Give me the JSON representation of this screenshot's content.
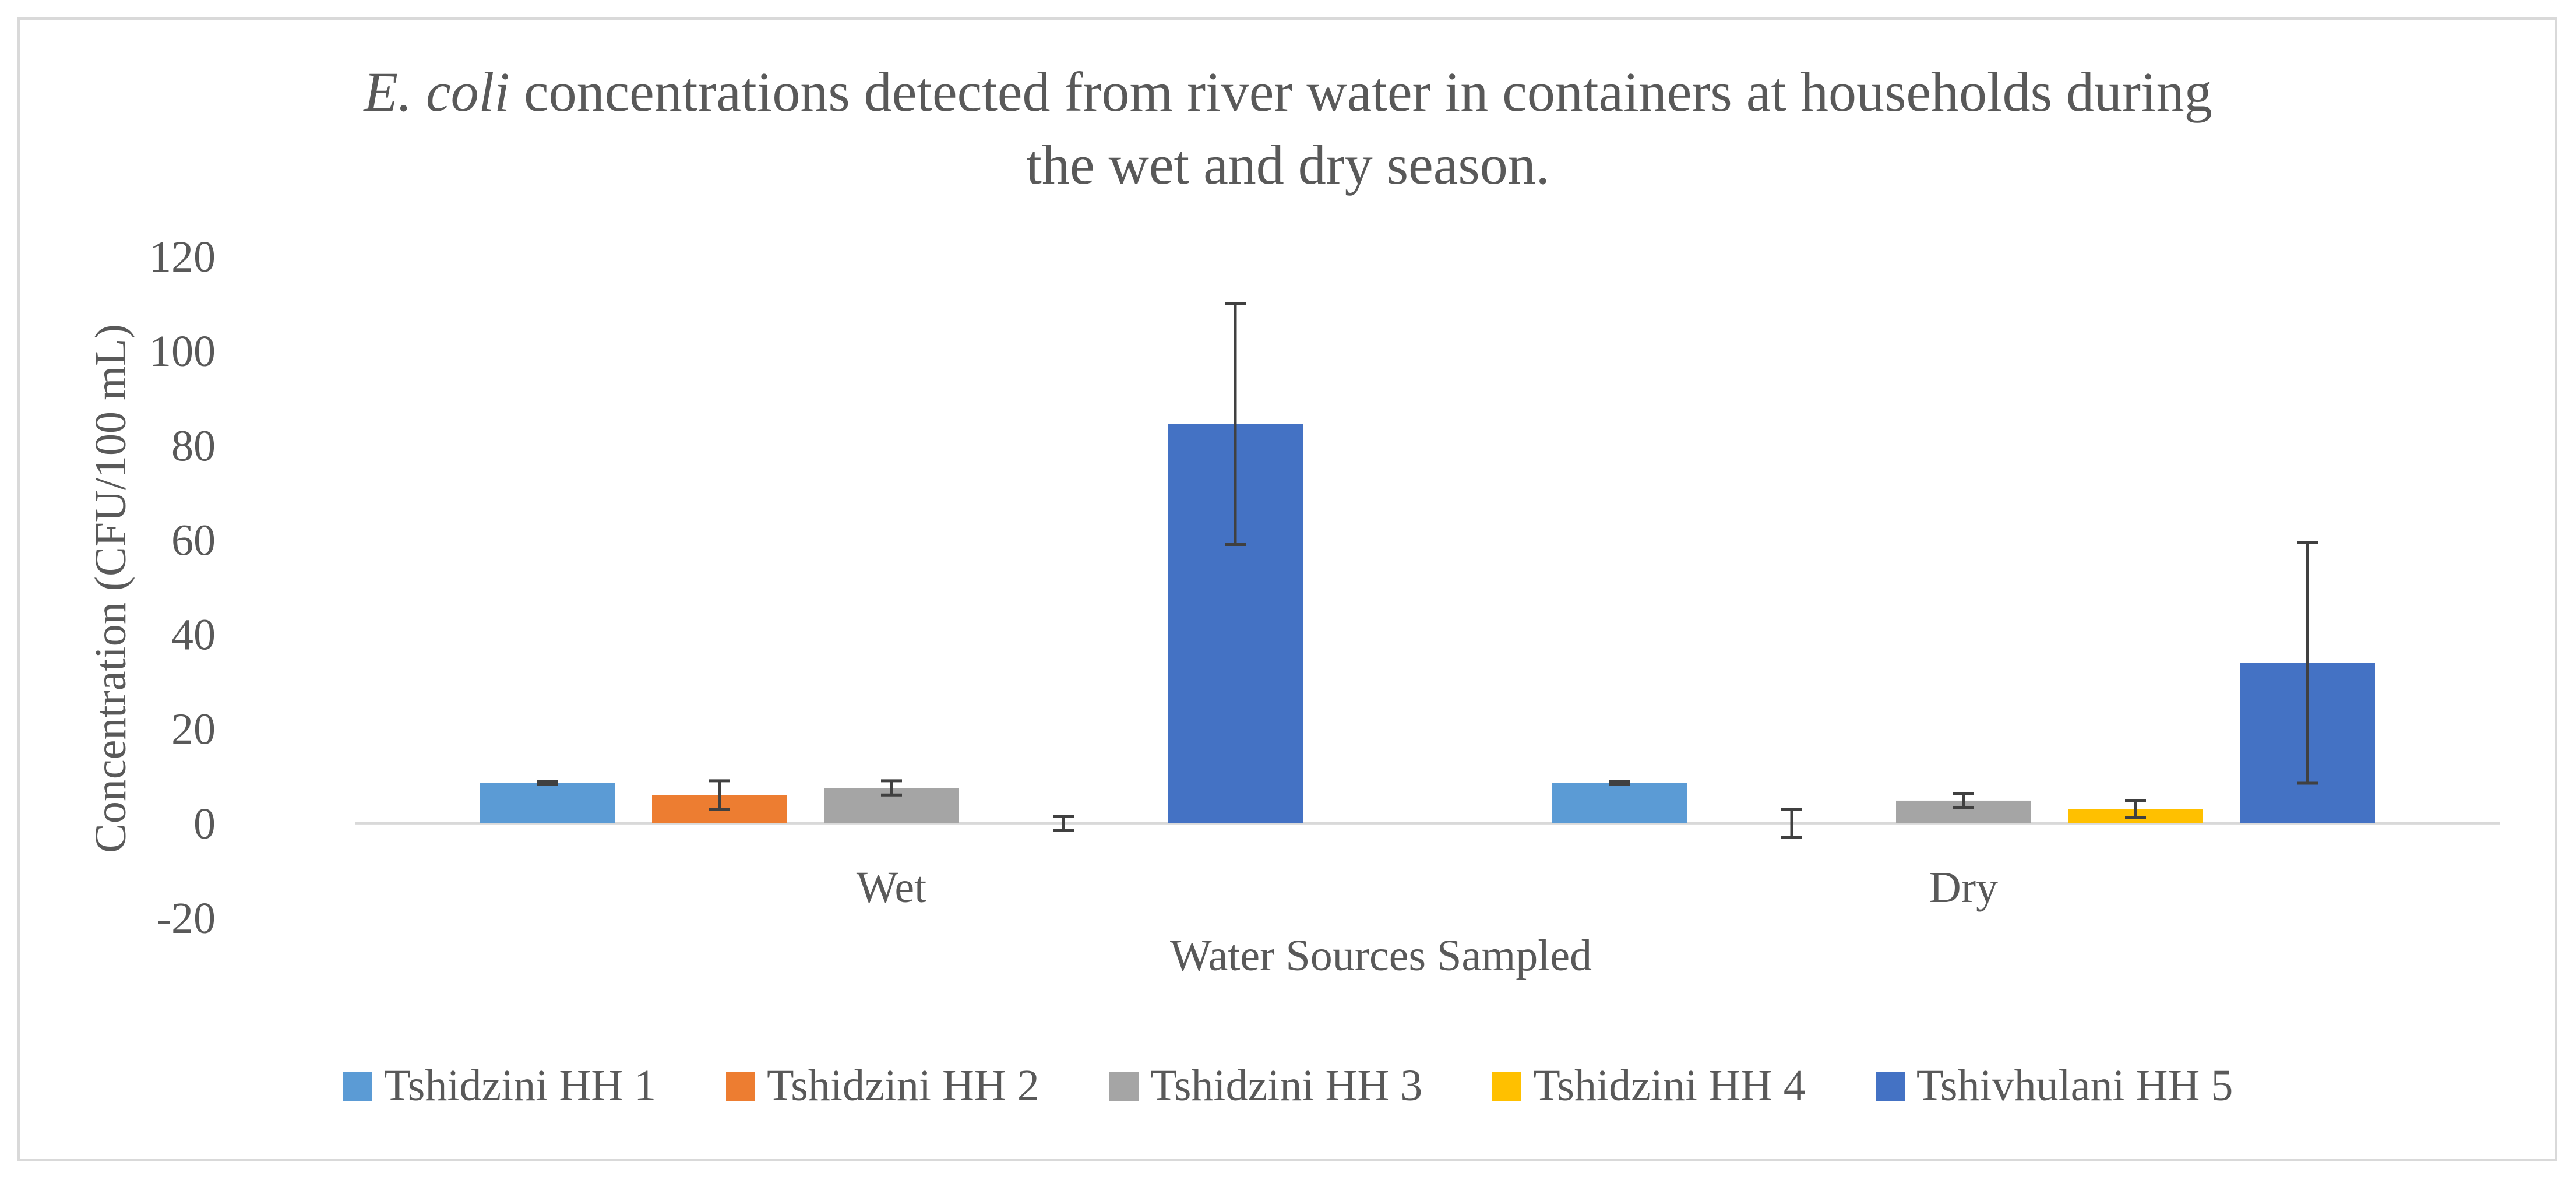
{
  "chart_data": {
    "type": "bar",
    "title_italic": "E. coli",
    "title_line1_rest": " concentrations detected from river water in containers at households during",
    "title_line2": "the wet and dry season.",
    "xlabel": "Water Sources Sampled",
    "ylabel": "Concentration (CFU/100 mL)",
    "ylim": [
      -20,
      120
    ],
    "yticks": [
      -20,
      0,
      20,
      40,
      60,
      80,
      100,
      120
    ],
    "categories": [
      "Wet",
      "Dry"
    ],
    "grid": false,
    "legend_position": "bottom",
    "series": [
      {
        "name": "Tshidzini HH 1",
        "color": "#5b9bd5",
        "values": [
          8.5,
          8.5
        ],
        "errors": [
          0.3,
          0.3
        ]
      },
      {
        "name": "Tshidzini HH 2",
        "color": "#ed7d31",
        "values": [
          6,
          0
        ],
        "errors": [
          3,
          3
        ]
      },
      {
        "name": "Tshidzini HH 3",
        "color": "#a5a5a5",
        "values": [
          7.5,
          4.8
        ],
        "errors": [
          1.5,
          1.5
        ]
      },
      {
        "name": "Tshidzini HH 4",
        "color": "#ffc000",
        "values": [
          0,
          3
        ],
        "errors": [
          1.5,
          1.8
        ]
      },
      {
        "name": "Tshivhulani HH 5",
        "color": "#4472c4",
        "values": [
          84.5,
          34
        ],
        "errors": [
          25.5,
          25.5
        ]
      }
    ]
  }
}
